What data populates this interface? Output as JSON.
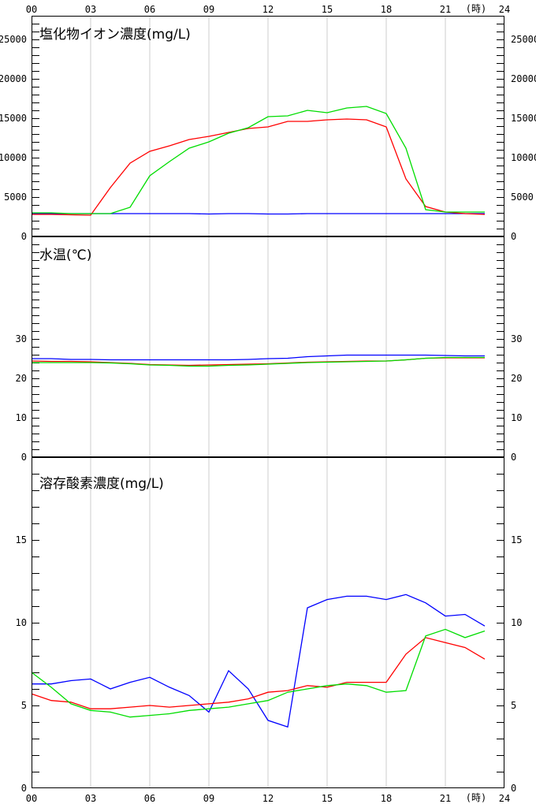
{
  "x_axis": {
    "labels": [
      "00",
      "03",
      "06",
      "09",
      "12",
      "15",
      "18",
      "21",
      "24"
    ],
    "unit": "(時)"
  },
  "colors": {
    "series_a": "#0000ff",
    "series_b": "#ff0000",
    "series_c": "#00dd00",
    "grid": "#cccccc",
    "frame": "#000000"
  },
  "chart_data": [
    {
      "type": "line",
      "title": "塩化物イオン濃度(mg/L)",
      "ylim": [
        0,
        28000
      ],
      "yticks": [
        0,
        5000,
        10000,
        15000,
        20000,
        25000
      ],
      "x": [
        0,
        1,
        2,
        3,
        4,
        5,
        6,
        7,
        8,
        9,
        10,
        11,
        12,
        13,
        14,
        15,
        16,
        17,
        18,
        19,
        20,
        21,
        22,
        23
      ],
      "series": [
        {
          "color": "#0000ff",
          "values": [
            2900,
            2900,
            2900,
            2900,
            2900,
            2900,
            2900,
            2900,
            2900,
            2850,
            2900,
            2900,
            2850,
            2850,
            2900,
            2900,
            2900,
            2900,
            2900,
            2900,
            2900,
            2900,
            2900,
            2900
          ]
        },
        {
          "color": "#ff0000",
          "values": [
            2800,
            2800,
            2750,
            2700,
            6200,
            9300,
            10800,
            11500,
            12300,
            12700,
            13200,
            13700,
            13900,
            14600,
            14600,
            14800,
            14900,
            14800,
            13900,
            7300,
            3800,
            3100,
            2900,
            2800
          ]
        },
        {
          "color": "#00dd00",
          "values": [
            3000,
            3000,
            2900,
            2900,
            2900,
            3700,
            7700,
            9500,
            11200,
            12000,
            13100,
            13800,
            15200,
            15300,
            16000,
            15700,
            16300,
            16500,
            15600,
            11200,
            3400,
            3100,
            3100,
            3100
          ]
        }
      ]
    },
    {
      "type": "line",
      "title": "水温(℃)",
      "ylim": [
        0,
        56
      ],
      "yticks": [
        0,
        10,
        20,
        30
      ],
      "x": [
        0,
        1,
        2,
        3,
        4,
        5,
        6,
        7,
        8,
        9,
        10,
        11,
        12,
        13,
        14,
        15,
        16,
        17,
        18,
        19,
        20,
        21,
        22,
        23
      ],
      "series": [
        {
          "color": "#0000ff",
          "values": [
            25.0,
            25.0,
            24.8,
            24.8,
            24.7,
            24.7,
            24.7,
            24.7,
            24.7,
            24.7,
            24.7,
            24.8,
            25.0,
            25.1,
            25.5,
            25.7,
            25.9,
            25.9,
            25.9,
            25.9,
            25.9,
            25.8,
            25.7,
            25.7
          ]
        },
        {
          "color": "#ff0000",
          "values": [
            24.4,
            24.3,
            24.3,
            24.2,
            24.0,
            23.8,
            23.5,
            23.4,
            23.3,
            23.4,
            23.5,
            23.6,
            23.7,
            23.9,
            24.1,
            24.2,
            24.3,
            24.4,
            24.4,
            24.7,
            25.1,
            25.2,
            25.2,
            25.2
          ]
        },
        {
          "color": "#00dd00",
          "values": [
            24.0,
            24.0,
            24.0,
            24.0,
            23.9,
            23.7,
            23.4,
            23.3,
            23.1,
            23.1,
            23.3,
            23.4,
            23.6,
            23.8,
            24.0,
            24.1,
            24.2,
            24.3,
            24.4,
            24.7,
            25.1,
            25.3,
            25.3,
            25.3
          ]
        }
      ]
    },
    {
      "type": "line",
      "title": "溶存酸素濃度(mg/L)",
      "ylim": [
        0,
        20
      ],
      "yticks": [
        0,
        5,
        10,
        15
      ],
      "x": [
        0,
        1,
        2,
        3,
        4,
        5,
        6,
        7,
        8,
        9,
        10,
        11,
        12,
        13,
        14,
        15,
        16,
        17,
        18,
        19,
        20,
        21,
        22,
        23
      ],
      "series": [
        {
          "color": "#0000ff",
          "values": [
            6.3,
            6.3,
            6.5,
            6.6,
            6.0,
            6.4,
            6.7,
            6.1,
            5.6,
            4.6,
            7.1,
            6.0,
            4.1,
            3.7,
            10.9,
            11.4,
            11.6,
            11.6,
            11.4,
            11.7,
            11.2,
            10.4,
            10.5,
            9.8
          ]
        },
        {
          "color": "#ff0000",
          "values": [
            5.7,
            5.3,
            5.2,
            4.8,
            4.8,
            4.9,
            5.0,
            4.9,
            5.0,
            5.1,
            5.2,
            5.4,
            5.8,
            5.9,
            6.2,
            6.1,
            6.4,
            6.4,
            6.4,
            8.1,
            9.1,
            8.8,
            8.5,
            7.8
          ]
        },
        {
          "color": "#00dd00",
          "values": [
            7.0,
            6.1,
            5.1,
            4.7,
            4.6,
            4.3,
            4.4,
            4.5,
            4.7,
            4.8,
            4.9,
            5.1,
            5.3,
            5.8,
            6.0,
            6.2,
            6.3,
            6.2,
            5.8,
            5.9,
            9.2,
            9.6,
            9.1,
            9.5
          ]
        }
      ]
    }
  ]
}
